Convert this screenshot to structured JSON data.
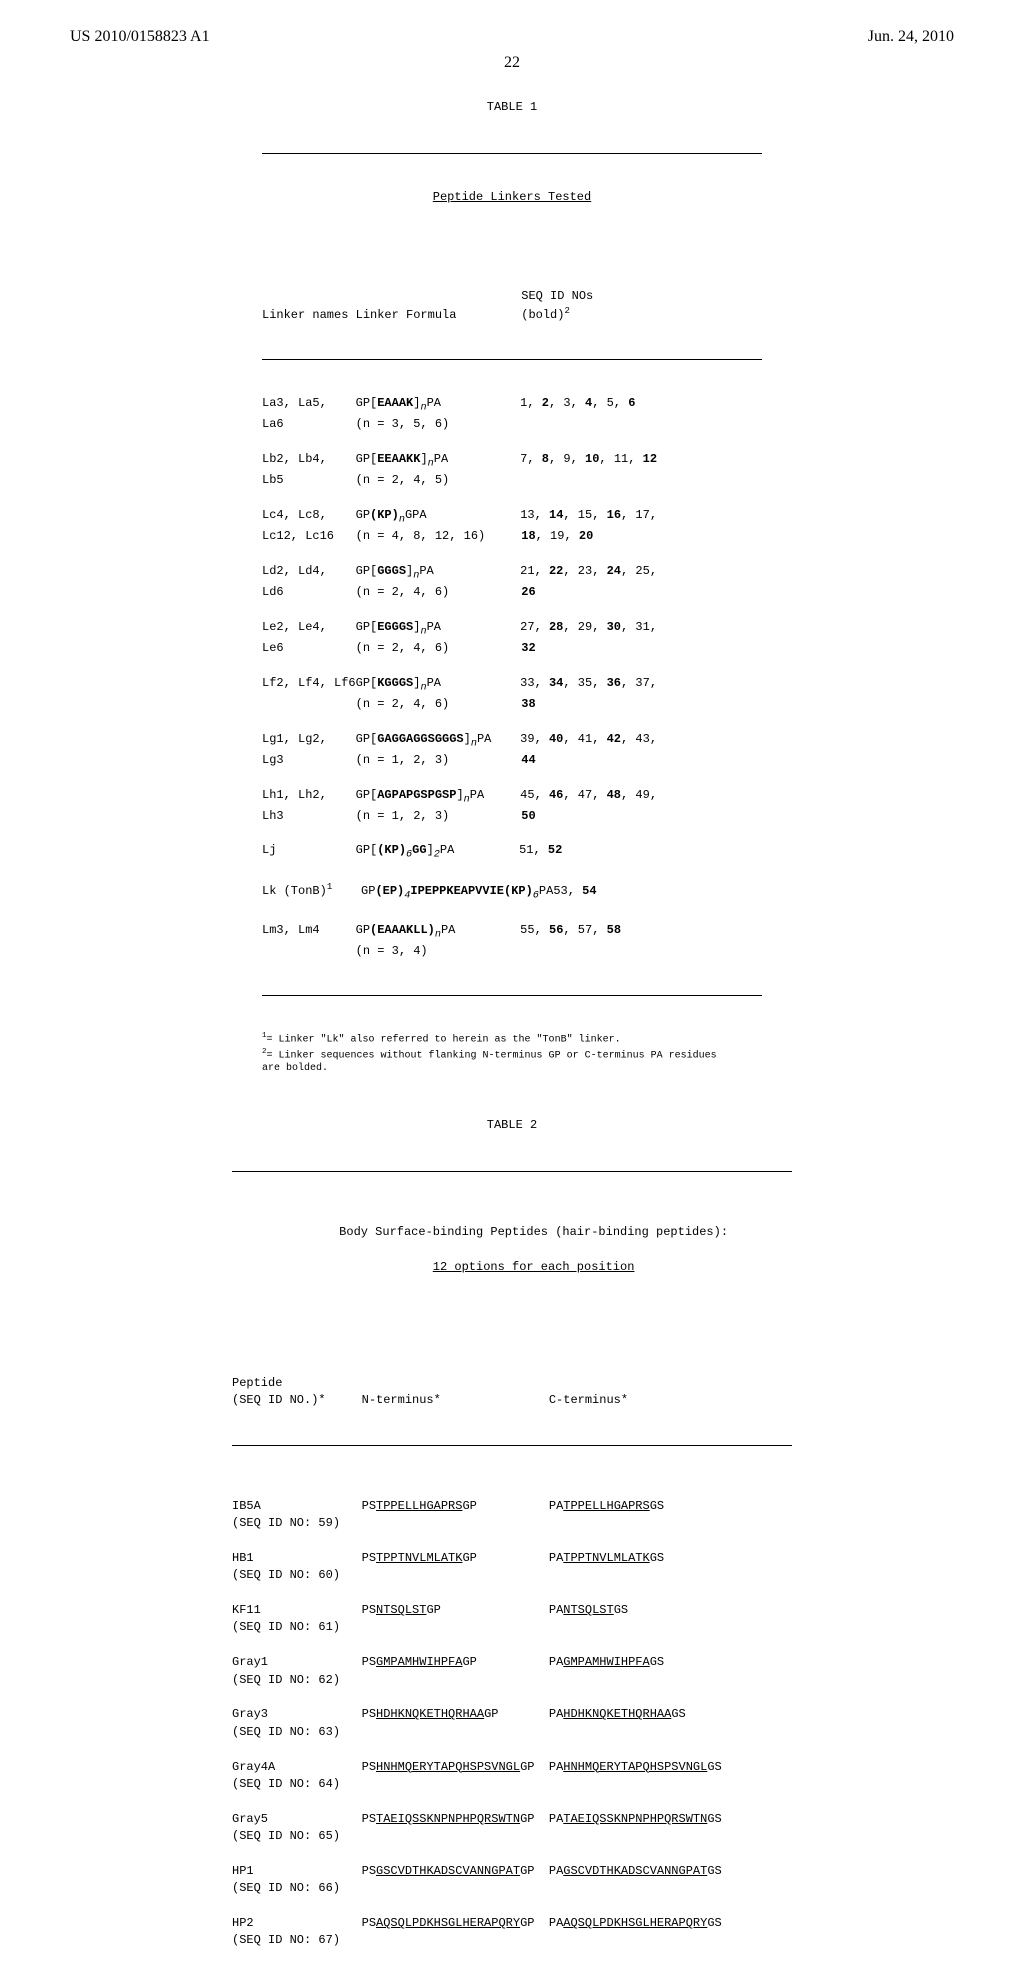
{
  "header": {
    "left": "US 2010/0158823 A1",
    "right": "Jun. 24, 2010"
  },
  "page_number": "22",
  "table1": {
    "label": "TABLE 1",
    "subtitle": "Peptide Linkers Tested",
    "col_header_1": "Linker names",
    "col_header_2": "Linker Formula",
    "col_header_3_line1": "SEQ ID NOs",
    "col_header_3_line2": "(bold)",
    "rows": [
      {
        "names": "La3, La5,\nLa6",
        "formula_pre": "GP[",
        "formula_bold": "EAAAK",
        "formula_post": "]",
        "sub": "n",
        "tail": "PA\n(n = 3, 5, 6)",
        "ids": "1, <b>2</b>, 3, <b>4</b>, 5, <b>6</b>"
      },
      {
        "names": "Lb2, Lb4,\nLb5",
        "formula_pre": "GP[",
        "formula_bold": "EEAAKK",
        "formula_post": "]",
        "sub": "n",
        "tail": "PA\n(n = 2, 4, 5)",
        "ids": "7, <b>8</b>, 9, <b>10</b>, 11, <b>12</b>"
      },
      {
        "names": "Lc4, Lc8,\nLc12, Lc16",
        "formula_pre": "GP",
        "formula_bold": "(KP)",
        "formula_post": "",
        "sub": "n",
        "tail": "GPA\n(n = 4, 8, 12, 16)",
        "ids": "13, <b>14</b>, 15, <b>16</b>, 17,\n<b>18</b>, 19, <b>20</b>"
      },
      {
        "names": "Ld2, Ld4,\nLd6",
        "formula_pre": "GP[",
        "formula_bold": "GGGS",
        "formula_post": "]",
        "sub": "n",
        "tail": "PA\n(n = 2, 4, 6)",
        "ids": "21, <b>22</b>, 23, <b>24</b>, 25,\n<b>26</b>"
      },
      {
        "names": "Le2, Le4,\nLe6",
        "formula_pre": "GP[",
        "formula_bold": "EGGGS",
        "formula_post": "]",
        "sub": "n",
        "tail": "PA\n(n = 2, 4, 6)",
        "ids": "27, <b>28</b>, 29, <b>30</b>, 31,\n<b>32</b>"
      },
      {
        "names": "Lf2, Lf4, Lf6",
        "formula_pre": "GP[",
        "formula_bold": "KGGGS",
        "formula_post": "]",
        "sub": "n",
        "tail": "PA\n(n = 2, 4, 6)",
        "ids": "33, <b>34</b>, 35, <b>36</b>, 37,\n<b>38</b>"
      },
      {
        "names": "Lg1, Lg2,\nLg3",
        "formula_pre": "GP[",
        "formula_bold": "GAGGAGGSGGGS",
        "formula_post": "]",
        "sub": "n",
        "tail": "PA\n(n = 1, 2, 3)",
        "ids": "39, <b>40</b>, 41, <b>42</b>, 43,\n<b>44</b>"
      },
      {
        "names": "Lh1, Lh2,\nLh3",
        "formula_pre": "GP[",
        "formula_bold": "AGPAPGSPGSP",
        "formula_post": "]",
        "sub": "n",
        "tail": "PA\n(n = 1, 2, 3)",
        "ids": "45, <b>46</b>, 47, <b>48</b>, 49,\n<b>50</b>"
      },
      {
        "names": "Lj",
        "formula_pre": "GP[",
        "formula_bold": "(KP)",
        "formula_post": "",
        "sub": "6",
        "tail_bold": "GG",
        "tail2": "]",
        "sub2": "2",
        "tail3": "PA",
        "ids": "51, <b>52</b>"
      },
      {
        "names": "Lk (TonB)",
        "sup": "1",
        "formula_pre": "GP",
        "formula_bold": "(EP)",
        "sub": "4",
        "tail_bold": "IPEPPKEAPVVIE(KP)",
        "sub2": "6",
        "tail3": "PA",
        "ids": "53, <b>54</b>"
      },
      {
        "names": "Lm3, Lm4",
        "formula_pre": "GP",
        "formula_bold": "(EAAAKLL)",
        "sub": "n",
        "tail": "PA\n(n = 3, 4)",
        "ids": "55, <b>56</b>, 57, <b>58</b>"
      }
    ],
    "footnote1_sup": "1",
    "footnote1": "= Linker \"Lk\" also referred to herein as the \"TonB\" linker.",
    "footnote2_sup": "2",
    "footnote2": "= Linker sequences without flanking N-terminus GP or C-terminus PA residues\nare bolded."
  },
  "table2": {
    "label": "TABLE 2",
    "subtitle_line1": "Body Surface-binding Peptides (hair-binding peptides):",
    "subtitle_line2": "12 options for each position",
    "col_header_1_line1": "Peptide",
    "col_header_1_line2": "(SEQ ID NO.)*",
    "col_header_2": "N-terminus*",
    "col_header_3": "C-terminus*",
    "rows": [
      {
        "name": "IB5A",
        "seqid": "(SEQ ID NO: 59)",
        "n_pre": "PS",
        "n_u": "TPPELLHGAPRS",
        "n_post": "GP",
        "c_pre": "PA",
        "c_u": "TPPELLHGAPRS",
        "c_post": "GS"
      },
      {
        "name": "HB1",
        "seqid": "(SEQ ID NO: 60)",
        "n_pre": "PS",
        "n_u": "TPPTNVLMLATK",
        "n_post": "GP",
        "c_pre": "PA",
        "c_u": "TPPTNVLMLATK",
        "c_post": "GS"
      },
      {
        "name": "KF11",
        "seqid": "(SEQ ID NO: 61)",
        "n_pre": "PS",
        "n_u": "NTSQLST",
        "n_post": "GP",
        "c_pre": "PA",
        "c_u": "NTSQLST",
        "c_post": "GS"
      },
      {
        "name": "Gray1",
        "seqid": "(SEQ ID NO: 62)",
        "n_pre": "PS",
        "n_u": "GMPAMHWIHPFA",
        "n_post": "GP",
        "c_pre": "PA",
        "c_u": "GMPAMHWIHPFA",
        "c_post": "GS"
      },
      {
        "name": "Gray3",
        "seqid": "(SEQ ID NO: 63)",
        "n_pre": "PS",
        "n_u": "HDHKNQKETHQRHAA",
        "n_post": "GP",
        "c_pre": "PA",
        "c_u": "HDHKNQKETHQRHAA",
        "c_post": "GS"
      },
      {
        "name": "Gray4A",
        "seqid": "(SEQ ID NO: 64)",
        "n_pre": "PS",
        "n_u": "HNHMQERYTAPQHSPSVNGL",
        "n_post": "GP",
        "c_pre": "PA",
        "c_u": "HNHMQERYTAPQHSPSVNGL",
        "c_post": "GS"
      },
      {
        "name": "Gray5",
        "seqid": "(SEQ ID NO: 65)",
        "n_pre": "PS",
        "n_u": "TAEIQSSKNPNPHPQRSWTN",
        "n_post": "GP",
        "c_pre": "PA",
        "c_u": "TAEIQSSKNPNPHPQRSWTN",
        "c_post": "GS"
      },
      {
        "name": "HP1",
        "seqid": "(SEQ ID NO: 66)",
        "n_pre": "PS",
        "n_u": "GSCVDTHKADSCVANNGPAT",
        "n_post": "GP",
        "c_pre": "PA",
        "c_u": "GSCVDTHKADSCVANNGPAT",
        "c_post": "GS"
      },
      {
        "name": "HP2",
        "seqid": "(SEQ ID NO: 67)",
        "n_pre": "PS",
        "n_u": "AQSQLPDKHSGLHERAPQRY",
        "n_post": "GP",
        "c_pre": "PA",
        "c_u": "AQSQLPDKHSGLHERAPQRY",
        "c_post": "GS"
      }
    ]
  }
}
